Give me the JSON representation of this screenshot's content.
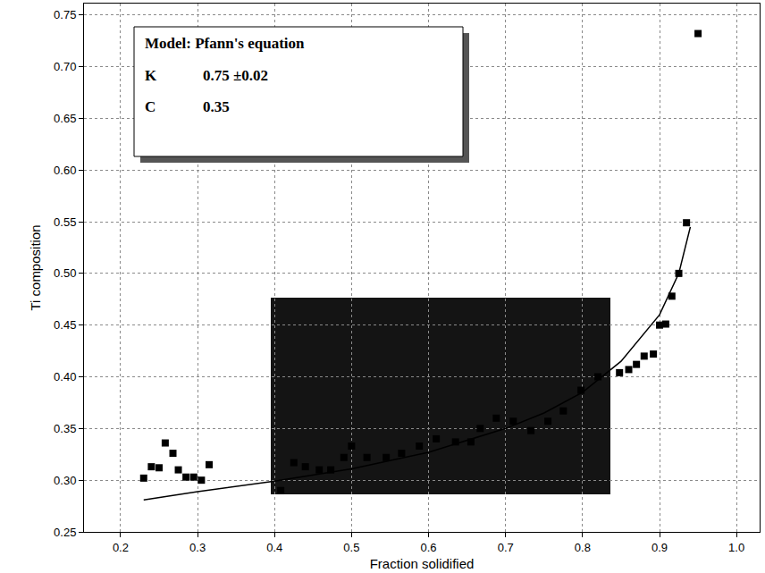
{
  "chart_data": {
    "type": "scatter",
    "x_label": "Fraction solidified",
    "y_label": "Ti composition",
    "xlim": [
      0.1525,
      1.03
    ],
    "ylim": [
      0.25,
      0.761
    ],
    "xticks": [
      0.2,
      0.3,
      0.4,
      0.5,
      0.6,
      0.7,
      0.8,
      0.9,
      {
        "value": 1,
        "label": "1.0"
      }
    ],
    "yticks": [
      0.25,
      {
        "value": 0.3,
        "label": "0.30"
      },
      0.35,
      {
        "value": 0.4,
        "label": "0.40"
      },
      0.45,
      {
        "value": 0.5,
        "label": "0.50"
      },
      0.55,
      {
        "value": 0.6,
        "label": "0.60"
      },
      0.65,
      {
        "value": 0.7,
        "label": "0.70"
      },
      0.75
    ],
    "grid": true,
    "annotations": [
      {
        "text": "Model: Pfann's equation"
      },
      {
        "label": "K",
        "text": "0.75 ±0.02"
      },
      {
        "label": "C",
        "text": "0.35"
      }
    ],
    "series": [
      {
        "type": "scatter",
        "marker": "square",
        "color": "#000000",
        "x": [
          0.23,
          0.24,
          0.25,
          0.258,
          0.268,
          0.275,
          0.285,
          0.295,
          0.305,
          0.315,
          0.408,
          0.425,
          0.44,
          0.458,
          0.473,
          0.49,
          0.5,
          0.52,
          0.545,
          0.565,
          0.588,
          0.61,
          0.635,
          0.655,
          0.667,
          0.688,
          0.71,
          0.733,
          0.755,
          0.775,
          0.798,
          0.82,
          0.848,
          0.86,
          0.87,
          0.88,
          0.892,
          0.9,
          0.908,
          0.916,
          0.925,
          0.935,
          0.95
        ],
        "values": [
          0.302,
          0.313,
          0.312,
          0.336,
          0.326,
          0.31,
          0.303,
          0.303,
          0.3,
          0.315,
          0.29,
          0.317,
          0.313,
          0.31,
          0.31,
          0.322,
          0.333,
          0.322,
          0.322,
          0.326,
          0.333,
          0.34,
          0.337,
          0.337,
          0.35,
          0.36,
          0.357,
          0.348,
          0.357,
          0.367,
          0.387,
          0.4,
          0.404,
          0.407,
          0.412,
          0.42,
          0.422,
          0.45,
          0.451,
          0.478,
          0.5,
          0.549,
          0.732
        ]
      },
      {
        "type": "line",
        "line_style": "solid",
        "color": "#000000",
        "x": [
          0.23,
          0.3,
          0.4,
          0.5,
          0.6,
          0.7,
          0.75,
          0.8,
          0.85,
          0.9,
          0.925,
          0.94
        ],
        "values": [
          0.281,
          0.289,
          0.299,
          0.311,
          0.327,
          0.35,
          0.365,
          0.385,
          0.415,
          0.46,
          0.5,
          0.545
        ]
      }
    ]
  }
}
